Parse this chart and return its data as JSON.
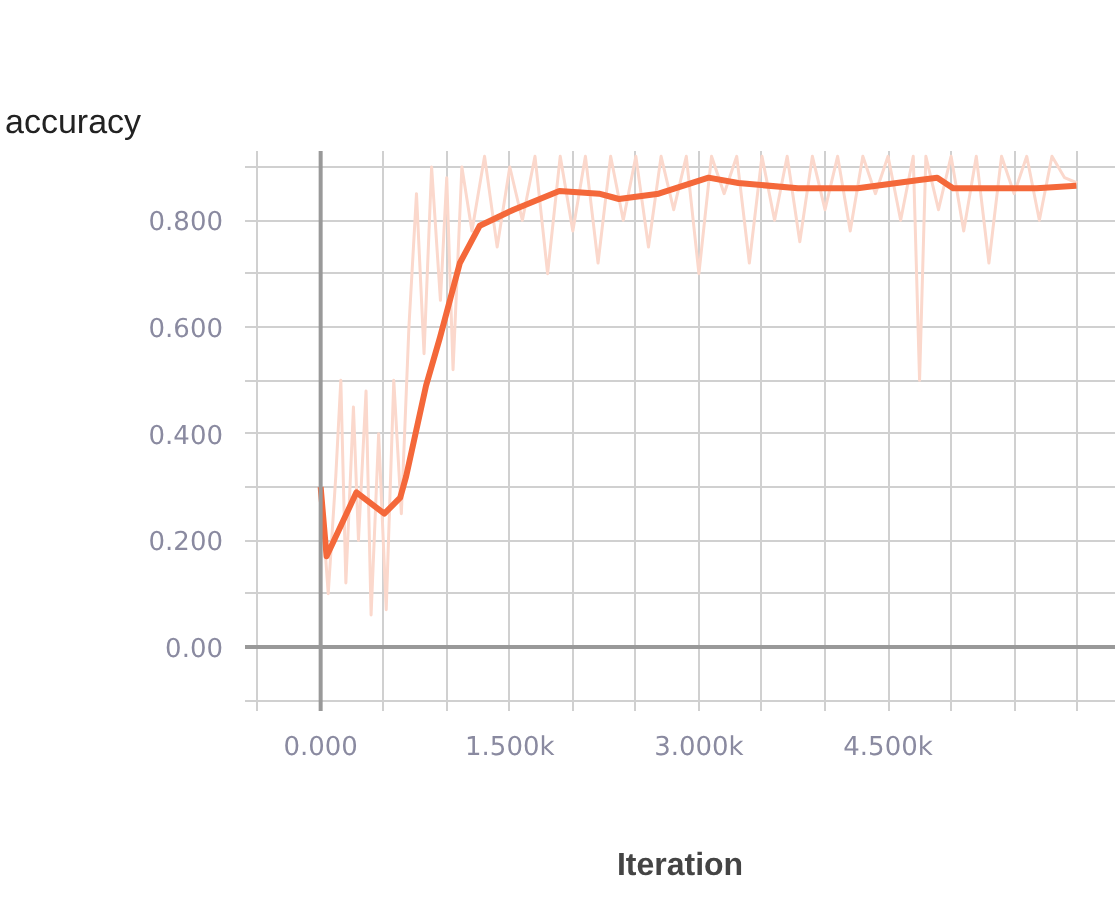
{
  "chart_data": {
    "type": "line",
    "title": "accuracy",
    "xlabel": "Iteration",
    "xlim": [
      -600,
      6300
    ],
    "ylim": [
      -0.12,
      0.93
    ],
    "xticks": [
      {
        "value": -500,
        "label": null
      },
      {
        "value": 0,
        "label": "0.000"
      },
      {
        "value": 500,
        "label": null
      },
      {
        "value": 1000,
        "label": null
      },
      {
        "value": 1500,
        "label": "1.500k"
      },
      {
        "value": 2000,
        "label": null
      },
      {
        "value": 2500,
        "label": null
      },
      {
        "value": 3000,
        "label": "3.000k"
      },
      {
        "value": 3500,
        "label": null
      },
      {
        "value": 4000,
        "label": null
      },
      {
        "value": 4500,
        "label": "4.500k"
      },
      {
        "value": 5000,
        "label": null
      },
      {
        "value": 5500,
        "label": null
      },
      {
        "value": 6000,
        "label": null
      }
    ],
    "yticks": [
      {
        "value": -0.1,
        "label": null
      },
      {
        "value": 0,
        "label": "0.00"
      },
      {
        "value": 0.1,
        "label": null
      },
      {
        "value": 0.2,
        "label": "0.200"
      },
      {
        "value": 0.3,
        "label": null
      },
      {
        "value": 0.4,
        "label": "0.400"
      },
      {
        "value": 0.5,
        "label": null
      },
      {
        "value": 0.6,
        "label": "0.600"
      },
      {
        "value": 0.7,
        "label": null
      },
      {
        "value": 0.8,
        "label": "0.800"
      },
      {
        "value": 0.9,
        "label": null
      }
    ],
    "grid": true,
    "series": [
      {
        "color": "#fbd8cc",
        "x": [
          0,
          60,
          120,
          160,
          200,
          260,
          300,
          360,
          400,
          460,
          520,
          580,
          640,
          700,
          760,
          820,
          880,
          950,
          1000,
          1050,
          1120,
          1200,
          1300,
          1400,
          1500,
          1600,
          1700,
          1800,
          1900,
          2000,
          2100,
          2200,
          2300,
          2400,
          2500,
          2600,
          2700,
          2800,
          2900,
          3000,
          3100,
          3200,
          3300,
          3400,
          3500,
          3600,
          3700,
          3800,
          3900,
          4000,
          4100,
          4200,
          4300,
          4400,
          4500,
          4600,
          4700,
          4750,
          4800,
          4900,
          5000,
          5100,
          5200,
          5300,
          5400,
          5500,
          5600,
          5700,
          5800,
          5900,
          6000
        ],
        "values": [
          0.3,
          0.1,
          0.32,
          0.5,
          0.12,
          0.45,
          0.2,
          0.48,
          0.06,
          0.4,
          0.07,
          0.5,
          0.25,
          0.6,
          0.85,
          0.55,
          0.9,
          0.65,
          0.88,
          0.52,
          0.9,
          0.78,
          0.92,
          0.75,
          0.9,
          0.8,
          0.92,
          0.7,
          0.92,
          0.78,
          0.92,
          0.72,
          0.92,
          0.8,
          0.92,
          0.75,
          0.92,
          0.82,
          0.92,
          0.7,
          0.92,
          0.85,
          0.92,
          0.72,
          0.92,
          0.8,
          0.92,
          0.76,
          0.92,
          0.82,
          0.92,
          0.78,
          0.92,
          0.85,
          0.92,
          0.8,
          0.92,
          0.5,
          0.92,
          0.82,
          0.92,
          0.78,
          0.92,
          0.72,
          0.92,
          0.85,
          0.92,
          0.8,
          0.92,
          0.88,
          0.87
        ]
      },
      {
        "color": "#f4683a",
        "x": [
          0,
          47,
          126,
          284,
          505,
          631,
          678,
          836,
          946,
          1104,
          1262,
          1530,
          1893,
          2208,
          2366,
          2681,
          3076,
          3312,
          3785,
          4259,
          4732,
          4890,
          5016,
          5363,
          5678,
          5994
        ],
        "values": [
          0.3,
          0.17,
          0.21,
          0.29,
          0.25,
          0.28,
          0.32,
          0.49,
          0.58,
          0.72,
          0.79,
          0.82,
          0.855,
          0.85,
          0.84,
          0.85,
          0.88,
          0.87,
          0.86,
          0.86,
          0.875,
          0.88,
          0.86,
          0.86,
          0.86,
          0.865
        ]
      }
    ]
  }
}
